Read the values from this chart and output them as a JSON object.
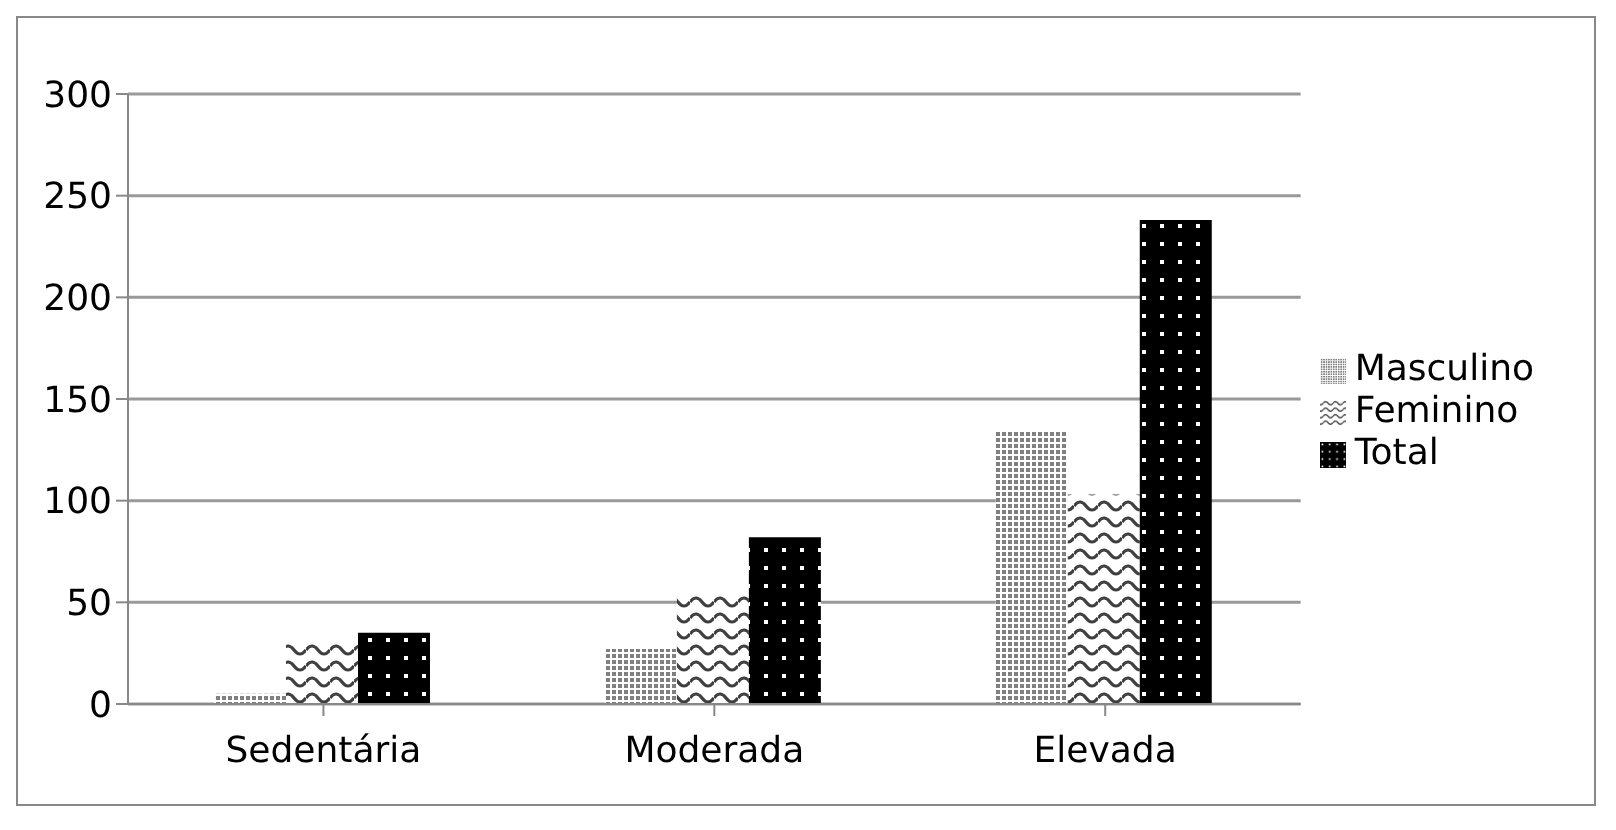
{
  "chart_data": {
    "type": "bar",
    "categories": [
      "Sedentária",
      "Moderada",
      "Elevada"
    ],
    "series": [
      {
        "name": "Masculino",
        "color": "#808080",
        "values": [
          5,
          27,
          134
        ]
      },
      {
        "name": "Feminino",
        "color": "#404040",
        "values": [
          30,
          54,
          103
        ]
      },
      {
        "name": "Total",
        "color": "#000000",
        "values": [
          35,
          82,
          238
        ]
      }
    ],
    "ylim": [
      0,
      300
    ],
    "yticks": [
      0,
      50,
      100,
      150,
      200,
      250,
      300
    ],
    "grid": "y",
    "legend": "right"
  }
}
